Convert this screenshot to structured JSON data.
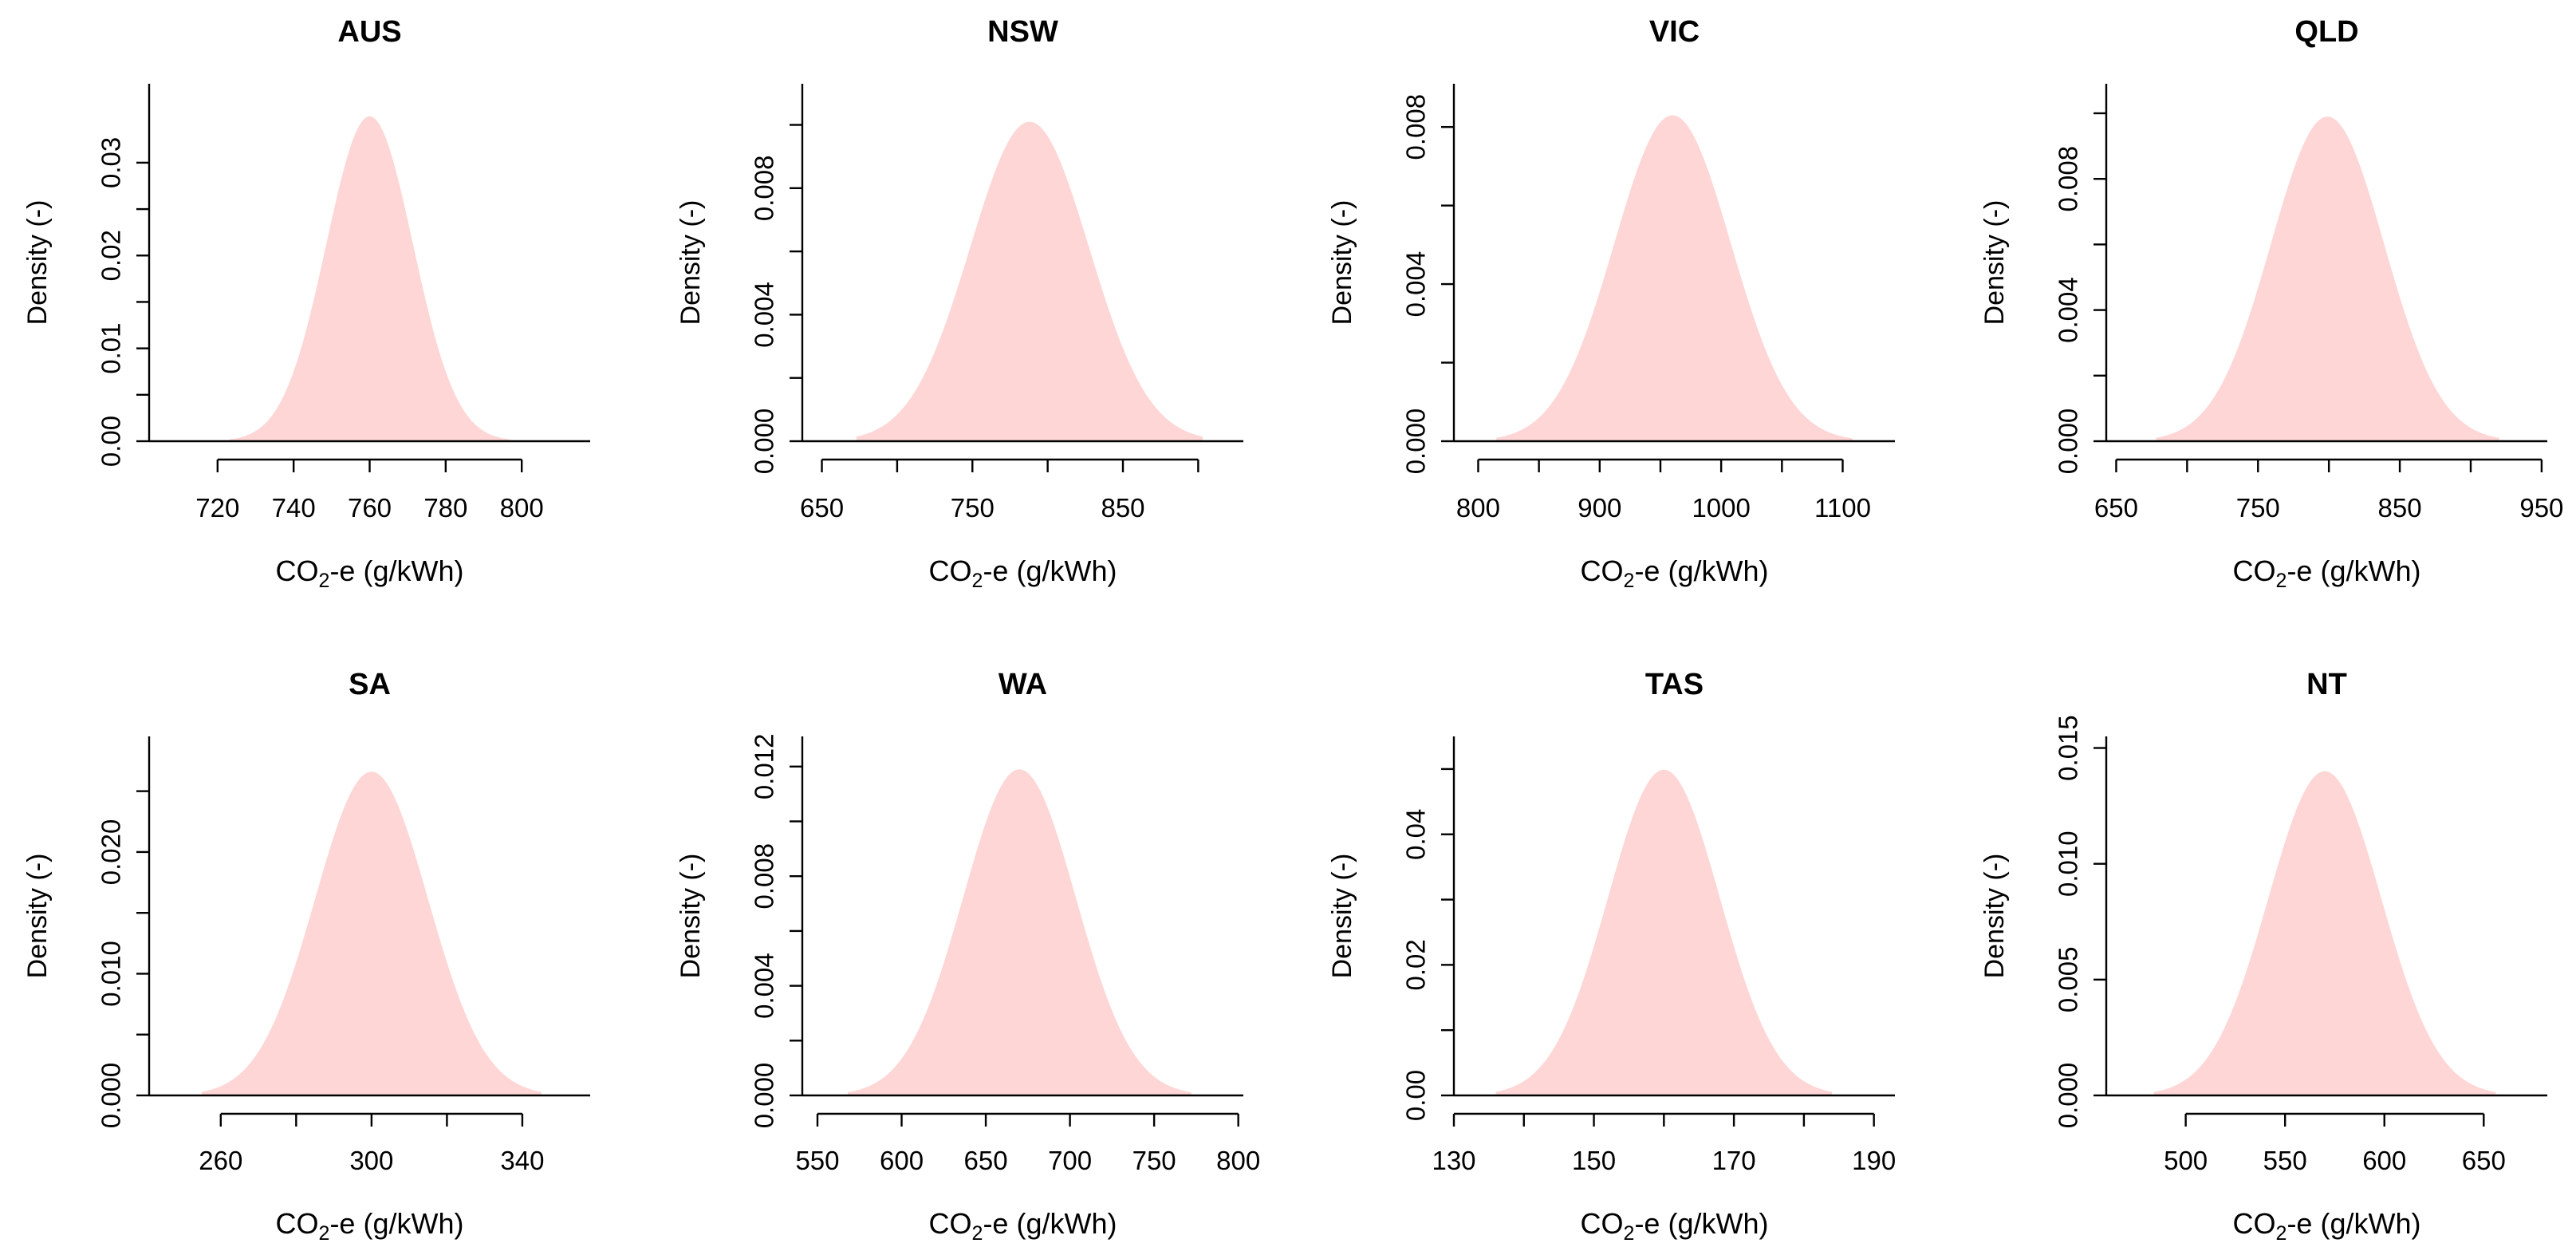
{
  "figure": {
    "background": "#ffffff",
    "fill_color": "#ffd6d6",
    "axis_color": "#000000"
  },
  "chart_data": [
    {
      "type": "area",
      "title": "AUS",
      "xlabel": {
        "pre": "CO",
        "sub": "2",
        "post": "-e (g/kWh)"
      },
      "ylabel": "Density (-)",
      "xlim": [
        702,
        818
      ],
      "ylim": [
        0,
        0.0385
      ],
      "xticks": [
        720,
        740,
        760,
        780,
        800
      ],
      "xtick_labels": [
        "720",
        "740",
        "760",
        "780",
        "800"
      ],
      "yticks": [
        0,
        0.005,
        0.01,
        0.015,
        0.02,
        0.025,
        0.03
      ],
      "ytick_labels": [
        "0.00",
        "",
        "0.01",
        "",
        "0.02",
        "",
        "0.03"
      ],
      "distribution": {
        "shape": "normal",
        "mean": 760,
        "sd": 11.4,
        "from": 723,
        "to": 797,
        "peak": 0.035
      }
    },
    {
      "type": "area",
      "title": "NSW",
      "xlabel": {
        "pre": "CO",
        "sub": "2",
        "post": "-e (g/kWh)"
      },
      "ylabel": "Density (-)",
      "xlim": [
        637,
        930
      ],
      "ylim": [
        0,
        0.0113
      ],
      "xticks": [
        650,
        700,
        750,
        800,
        850,
        900
      ],
      "xtick_labels": [
        "650",
        "",
        "750",
        "",
        "850",
        ""
      ],
      "yticks": [
        0,
        0.002,
        0.004,
        0.006,
        0.008,
        0.01
      ],
      "ytick_labels": [
        "0.000",
        "",
        "0.004",
        "",
        "0.008",
        ""
      ],
      "distribution": {
        "shape": "normal",
        "mean": 788,
        "sd": 39.5,
        "from": 673,
        "to": 903,
        "peak": 0.0101
      }
    },
    {
      "type": "area",
      "title": "VIC",
      "xlabel": {
        "pre": "CO",
        "sub": "2",
        "post": "-e (g/kWh)"
      },
      "ylabel": "Density (-)",
      "xlim": [
        780,
        1143
      ],
      "ylim": [
        0,
        0.0091
      ],
      "xticks": [
        800,
        850,
        900,
        950,
        1000,
        1050,
        1100
      ],
      "xtick_labels": [
        "800",
        "",
        "900",
        "",
        "1000",
        "",
        "1100"
      ],
      "yticks": [
        0,
        0.002,
        0.004,
        0.006,
        0.008
      ],
      "ytick_labels": [
        "0.000",
        "",
        "0.004",
        "",
        "0.008"
      ],
      "distribution": {
        "shape": "normal",
        "mean": 960,
        "sd": 48,
        "from": 815,
        "to": 1108,
        "peak": 0.0083
      }
    },
    {
      "type": "area",
      "title": "QLD",
      "xlabel": {
        "pre": "CO",
        "sub": "2",
        "post": "-e (g/kWh)"
      },
      "ylabel": "Density (-)",
      "xlim": [
        643,
        954
      ],
      "ylim": [
        0,
        0.0109
      ],
      "xticks": [
        650,
        700,
        750,
        800,
        850,
        900,
        950
      ],
      "xtick_labels": [
        "650",
        "",
        "750",
        "",
        "850",
        "",
        "950"
      ],
      "yticks": [
        0,
        0.002,
        0.004,
        0.006,
        0.008,
        0.01
      ],
      "ytick_labels": [
        "0.000",
        "",
        "0.004",
        "",
        "0.008",
        ""
      ],
      "distribution": {
        "shape": "normal",
        "mean": 799,
        "sd": 40,
        "from": 678,
        "to": 920,
        "peak": 0.0099
      }
    },
    {
      "type": "area",
      "title": "SA",
      "xlabel": {
        "pre": "CO",
        "sub": "2",
        "post": "-e (g/kWh)"
      },
      "ylabel": "Density (-)",
      "xlim": [
        241,
        358
      ],
      "ylim": [
        0,
        0.0295
      ],
      "xticks": [
        260,
        280,
        300,
        320,
        340
      ],
      "xtick_labels": [
        "260",
        "",
        "300",
        "",
        "340"
      ],
      "yticks": [
        0,
        0.005,
        0.01,
        0.015,
        0.02,
        0.025
      ],
      "ytick_labels": [
        "0.000",
        "",
        "0.010",
        "",
        "0.020",
        ""
      ],
      "distribution": {
        "shape": "normal",
        "mean": 300,
        "sd": 15,
        "from": 255,
        "to": 345,
        "peak": 0.0266
      }
    },
    {
      "type": "area",
      "title": "WA",
      "xlabel": {
        "pre": "CO",
        "sub": "2",
        "post": "-e (g/kWh)"
      },
      "ylabel": "Density (-)",
      "xlim": [
        541,
        803
      ],
      "ylim": [
        0,
        0.0131
      ],
      "xticks": [
        550,
        600,
        650,
        700,
        750,
        800
      ],
      "xtick_labels": [
        "550",
        "600",
        "650",
        "700",
        "750",
        "800"
      ],
      "yticks": [
        0,
        0.002,
        0.004,
        0.006,
        0.008,
        0.01,
        0.012
      ],
      "ytick_labels": [
        "0.000",
        "",
        "0.004",
        "",
        "0.008",
        "",
        "0.012"
      ],
      "distribution": {
        "shape": "normal",
        "mean": 670,
        "sd": 33.5,
        "from": 568,
        "to": 772,
        "peak": 0.0119
      }
    },
    {
      "type": "area",
      "title": "TAS",
      "xlabel": {
        "pre": "CO",
        "sub": "2",
        "post": "-e (g/kWh)"
      },
      "ylabel": "Density (-)",
      "xlim": [
        130,
        193
      ],
      "ylim": [
        0,
        0.055
      ],
      "xticks": [
        130,
        140,
        150,
        160,
        170,
        180,
        190
      ],
      "xtick_labels": [
        "130",
        "",
        "150",
        "",
        "170",
        "",
        "190"
      ],
      "yticks": [
        0,
        0.01,
        0.02,
        0.03,
        0.04,
        0.05
      ],
      "ytick_labels": [
        "0.00",
        "",
        "0.02",
        "",
        "0.04",
        ""
      ],
      "distribution": {
        "shape": "normal",
        "mean": 160,
        "sd": 8,
        "from": 136,
        "to": 184,
        "peak": 0.0499
      }
    },
    {
      "type": "area",
      "title": "NT",
      "xlabel": {
        "pre": "CO",
        "sub": "2",
        "post": "-e (g/kWh)"
      },
      "ylabel": "Density (-)",
      "xlim": [
        460,
        682
      ],
      "ylim": [
        0,
        0.0155
      ],
      "xticks": [
        500,
        550,
        600,
        650
      ],
      "xtick_labels": [
        "500",
        "550",
        "600",
        "650"
      ],
      "yticks": [
        0,
        0.005,
        0.01,
        0.015
      ],
      "ytick_labels": [
        "0.000",
        "0.005",
        "0.010",
        "0.015"
      ],
      "distribution": {
        "shape": "normal",
        "mean": 570,
        "sd": 28.5,
        "from": 484,
        "to": 656,
        "peak": 0.014
      }
    }
  ]
}
